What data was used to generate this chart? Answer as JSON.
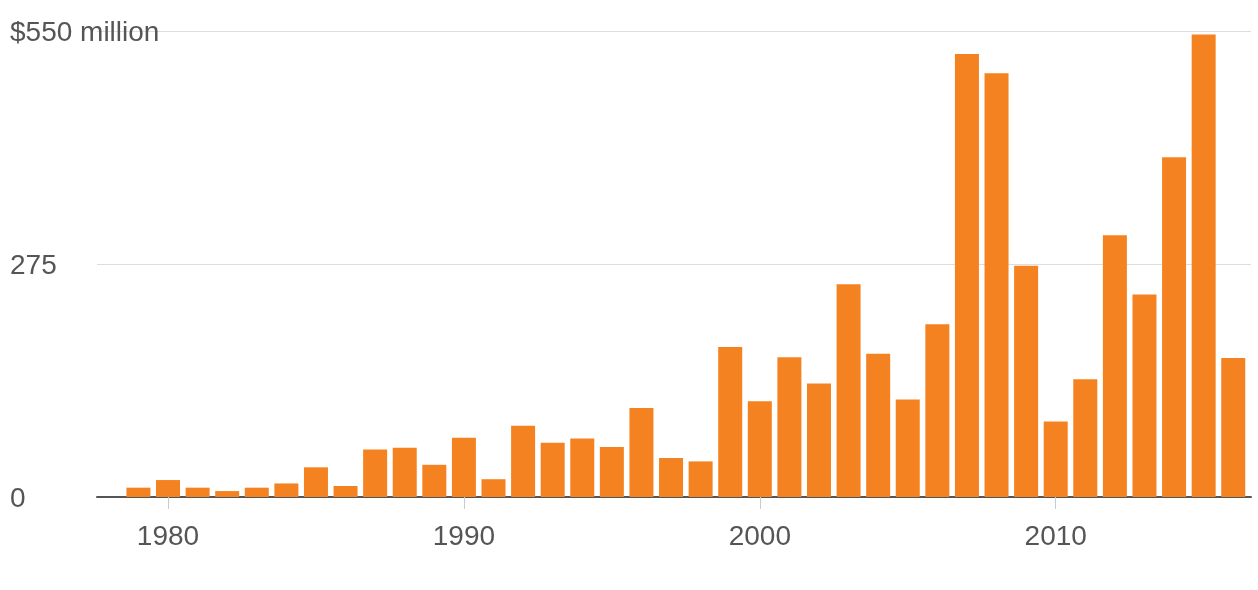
{
  "chart_data": {
    "type": "bar",
    "x": [
      1979,
      1980,
      1981,
      1982,
      1983,
      1984,
      1985,
      1986,
      1987,
      1988,
      1989,
      1990,
      1991,
      1992,
      1993,
      1994,
      1995,
      1996,
      1997,
      1998,
      1999,
      2000,
      2001,
      2002,
      2003,
      2004,
      2005,
      2006,
      2007,
      2008,
      2009,
      2010,
      2011,
      2012,
      2013,
      2014,
      2015,
      2016
    ],
    "values": [
      11,
      20,
      11,
      7,
      11,
      16,
      35,
      13,
      56,
      58,
      38,
      70,
      21,
      84,
      64,
      69,
      59,
      105,
      46,
      42,
      177,
      113,
      165,
      134,
      251,
      169,
      115,
      204,
      523,
      500,
      273,
      89,
      139,
      309,
      239,
      401,
      546,
      164
    ],
    "color": "#f58220",
    "xlim": [
      1977.6,
      2016.6
    ],
    "xticks": [
      1980,
      1990,
      2000,
      2010
    ],
    "ylim": [
      0,
      550
    ],
    "yticks": [
      0,
      275,
      {
        "value": 550,
        "label": "$550 million"
      }
    ],
    "grid": "y"
  }
}
